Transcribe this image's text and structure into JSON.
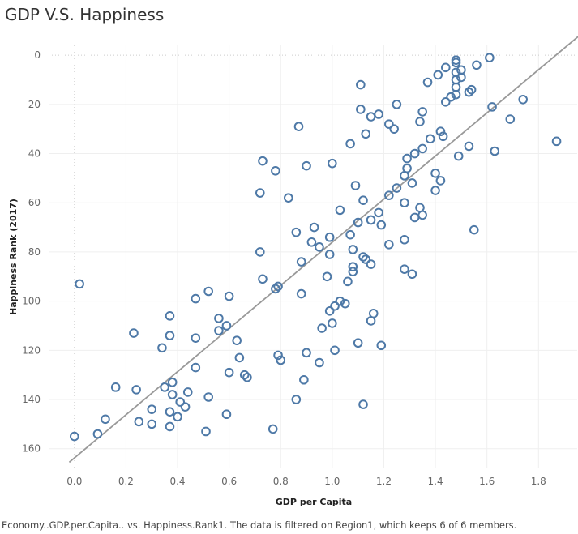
{
  "header": {
    "title": "GDP V.S. Happiness"
  },
  "footer": {
    "caption": "Economy..GDP.per.Capita.. vs. Happiness.Rank1.  The data is filtered on Region1, which keeps 6 of 6 members."
  },
  "colors": {
    "marker": "#4e79a7",
    "trend": "#999999",
    "grid": "#efefef",
    "zero_line": "#cccccc"
  },
  "chart_data": {
    "type": "scatter",
    "xlabel": "GDP per Capita",
    "ylabel": "Happiness Rank (2017)",
    "xlim": [
      -0.1,
      1.95
    ],
    "ylim": [
      168,
      -4
    ],
    "y_reversed": true,
    "grid": true,
    "x_ticks": [
      "0.0",
      "0.2",
      "0.4",
      "0.6",
      "0.8",
      "1.0",
      "1.2",
      "1.4",
      "1.6",
      "1.8"
    ],
    "x_tick_values": [
      0,
      0.2,
      0.4,
      0.6,
      0.8,
      1.0,
      1.2,
      1.4,
      1.6,
      1.8
    ],
    "y_ticks": [
      "0",
      "20",
      "40",
      "60",
      "80",
      "100",
      "120",
      "140",
      "160"
    ],
    "y_tick_values": [
      0,
      20,
      40,
      60,
      80,
      100,
      120,
      140,
      160
    ],
    "trend_line": {
      "x": [
        -0.02,
        1.97
      ],
      "y": [
        165.5,
        -9
      ]
    },
    "points": [
      [
        1.61,
        1
      ],
      [
        1.48,
        2
      ],
      [
        1.48,
        3
      ],
      [
        1.56,
        4
      ],
      [
        1.44,
        5
      ],
      [
        1.5,
        6
      ],
      [
        1.48,
        7
      ],
      [
        1.41,
        8
      ],
      [
        1.5,
        9
      ],
      [
        1.48,
        10
      ],
      [
        1.37,
        11
      ],
      [
        1.11,
        12
      ],
      [
        1.48,
        13
      ],
      [
        1.54,
        14
      ],
      [
        1.53,
        15
      ],
      [
        1.48,
        16
      ],
      [
        1.46,
        17
      ],
      [
        1.74,
        18
      ],
      [
        1.44,
        19
      ],
      [
        1.25,
        20
      ],
      [
        1.62,
        21
      ],
      [
        1.11,
        22
      ],
      [
        1.35,
        23
      ],
      [
        1.18,
        24
      ],
      [
        1.15,
        25
      ],
      [
        1.69,
        26
      ],
      [
        1.34,
        27
      ],
      [
        1.22,
        28
      ],
      [
        0.87,
        29
      ],
      [
        1.24,
        30
      ],
      [
        1.42,
        31
      ],
      [
        1.13,
        32
      ],
      [
        1.43,
        33
      ],
      [
        1.38,
        34
      ],
      [
        1.87,
        35
      ],
      [
        1.07,
        36
      ],
      [
        1.53,
        37
      ],
      [
        1.35,
        38
      ],
      [
        1.63,
        39
      ],
      [
        1.32,
        40
      ],
      [
        1.49,
        41
      ],
      [
        1.29,
        42
      ],
      [
        0.73,
        43
      ],
      [
        1.0,
        44
      ],
      [
        0.9,
        45
      ],
      [
        1.29,
        46
      ],
      [
        0.78,
        47
      ],
      [
        1.4,
        48
      ],
      [
        1.28,
        49
      ],
      [
        1.42,
        51
      ],
      [
        1.31,
        52
      ],
      [
        1.09,
        53
      ],
      [
        1.25,
        54
      ],
      [
        1.4,
        55
      ],
      [
        0.72,
        56
      ],
      [
        1.22,
        57
      ],
      [
        0.83,
        58
      ],
      [
        1.12,
        59
      ],
      [
        1.28,
        60
      ],
      [
        1.34,
        62
      ],
      [
        1.03,
        63
      ],
      [
        1.18,
        64
      ],
      [
        1.35,
        65
      ],
      [
        1.32,
        66
      ],
      [
        1.15,
        67
      ],
      [
        1.1,
        68
      ],
      [
        1.19,
        69
      ],
      [
        0.93,
        70
      ],
      [
        1.55,
        71
      ],
      [
        0.86,
        72
      ],
      [
        1.07,
        73
      ],
      [
        0.99,
        74
      ],
      [
        1.28,
        75
      ],
      [
        0.92,
        76
      ],
      [
        1.22,
        77
      ],
      [
        0.95,
        78
      ],
      [
        1.08,
        79
      ],
      [
        0.72,
        80
      ],
      [
        0.99,
        81
      ],
      [
        1.12,
        82
      ],
      [
        1.13,
        83
      ],
      [
        0.88,
        84
      ],
      [
        1.15,
        85
      ],
      [
        1.08,
        86
      ],
      [
        1.28,
        87
      ],
      [
        1.08,
        88
      ],
      [
        1.31,
        89
      ],
      [
        0.98,
        90
      ],
      [
        0.73,
        91
      ],
      [
        1.06,
        92
      ],
      [
        0.02,
        93
      ],
      [
        0.79,
        94
      ],
      [
        0.78,
        95
      ],
      [
        0.52,
        96
      ],
      [
        0.88,
        97
      ],
      [
        0.6,
        98
      ],
      [
        0.47,
        99
      ],
      [
        1.03,
        100
      ],
      [
        1.05,
        101
      ],
      [
        1.01,
        102
      ],
      [
        0.99,
        104
      ],
      [
        1.16,
        105
      ],
      [
        0.37,
        106
      ],
      [
        0.56,
        107
      ],
      [
        1.15,
        108
      ],
      [
        1.0,
        109
      ],
      [
        0.59,
        110
      ],
      [
        0.96,
        111
      ],
      [
        0.56,
        112
      ],
      [
        0.23,
        113
      ],
      [
        0.37,
        114
      ],
      [
        0.47,
        115
      ],
      [
        0.63,
        116
      ],
      [
        1.1,
        117
      ],
      [
        1.19,
        118
      ],
      [
        0.34,
        119
      ],
      [
        1.01,
        120
      ],
      [
        0.9,
        121
      ],
      [
        0.79,
        122
      ],
      [
        0.64,
        123
      ],
      [
        0.8,
        124
      ],
      [
        0.95,
        125
      ],
      [
        0.47,
        127
      ],
      [
        0.6,
        129
      ],
      [
        0.66,
        130
      ],
      [
        0.67,
        131
      ],
      [
        0.89,
        132
      ],
      [
        0.38,
        133
      ],
      [
        0.16,
        135
      ],
      [
        0.35,
        135
      ],
      [
        0.24,
        136
      ],
      [
        0.44,
        137
      ],
      [
        0.38,
        138
      ],
      [
        0.52,
        139
      ],
      [
        0.86,
        140
      ],
      [
        0.41,
        141
      ],
      [
        1.12,
        142
      ],
      [
        0.43,
        143
      ],
      [
        0.3,
        144
      ],
      [
        0.37,
        145
      ],
      [
        0.59,
        146
      ],
      [
        0.4,
        147
      ],
      [
        0.12,
        148
      ],
      [
        0.25,
        149
      ],
      [
        0.3,
        150
      ],
      [
        0.37,
        151
      ],
      [
        0.77,
        152
      ],
      [
        0.51,
        153
      ],
      [
        0.09,
        154
      ],
      [
        0.0,
        155
      ]
    ]
  }
}
